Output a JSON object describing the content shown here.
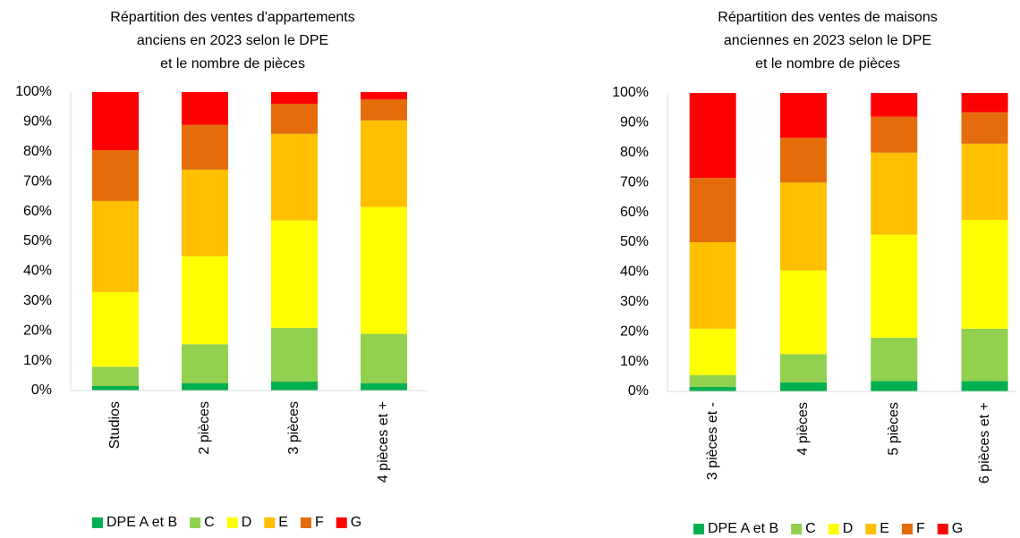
{
  "chart_data": [
    {
      "type": "bar",
      "stacked": true,
      "title": [
        "Répartition des ventes d'appartements",
        "anciens en 2023 selon le DPE",
        "et le nombre de pièces"
      ],
      "categories": [
        "Studios",
        "2 pièces",
        "3 pièces",
        "4 pièces et +"
      ],
      "series": [
        {
          "name": "DPE A et B",
          "color": "#00b050",
          "values": [
            1.5,
            2.5,
            3,
            2.5
          ]
        },
        {
          "name": "C",
          "color": "#92d050",
          "values": [
            6.5,
            13,
            18,
            16.5
          ]
        },
        {
          "name": "D",
          "color": "#ffff00",
          "values": [
            25,
            29.5,
            36,
            42.5
          ]
        },
        {
          "name": "E",
          "color": "#ffc000",
          "values": [
            30.5,
            29,
            29,
            29
          ]
        },
        {
          "name": "F",
          "color": "#e46c0a",
          "values": [
            17,
            15,
            10,
            7
          ]
        },
        {
          "name": "G",
          "color": "#ff0000",
          "values": [
            19.5,
            11,
            4,
            2.5
          ]
        }
      ],
      "ylim": [
        0,
        100
      ],
      "yticks": [
        {
          "value": 0,
          "label": "0%"
        },
        {
          "value": 10,
          "label": "10%"
        },
        {
          "value": 20,
          "label": "20%"
        },
        {
          "value": 30,
          "label": "30%"
        },
        {
          "value": 40,
          "label": "40%"
        },
        {
          "value": 50,
          "label": "50%"
        },
        {
          "value": 60,
          "label": "60%"
        },
        {
          "value": 70,
          "label": "70%"
        },
        {
          "value": 80,
          "label": "80%"
        },
        {
          "value": 90,
          "label": "90%"
        },
        {
          "value": 100,
          "label": "100%"
        }
      ],
      "legend": "bottom"
    },
    {
      "type": "bar",
      "stacked": true,
      "title": [
        "Répartition des ventes de maisons",
        "anciennes en 2023 selon le DPE",
        "et le nombre de pièces"
      ],
      "categories": [
        "3 pièces et -",
        "4 pièces",
        "5 pièces",
        "6 pièces et +"
      ],
      "series": [
        {
          "name": "DPE A et B",
          "color": "#00b050",
          "values": [
            1.5,
            3,
            3.5,
            3.5
          ]
        },
        {
          "name": "C",
          "color": "#92d050",
          "values": [
            4,
            9.5,
            14.5,
            17.5
          ]
        },
        {
          "name": "D",
          "color": "#ffff00",
          "values": [
            15.5,
            28,
            34.5,
            36.5
          ]
        },
        {
          "name": "E",
          "color": "#ffc000",
          "values": [
            29,
            29.5,
            27.5,
            25.5
          ]
        },
        {
          "name": "F",
          "color": "#e46c0a",
          "values": [
            21.5,
            15,
            12,
            10.5
          ]
        },
        {
          "name": "G",
          "color": "#ff0000",
          "values": [
            28.5,
            15,
            8,
            6.5
          ]
        }
      ],
      "ylim": [
        0,
        100
      ],
      "yticks": [
        {
          "value": 0,
          "label": "0%"
        },
        {
          "value": 10,
          "label": "10%"
        },
        {
          "value": 20,
          "label": "20%"
        },
        {
          "value": 30,
          "label": "30%"
        },
        {
          "value": 40,
          "label": "40%"
        },
        {
          "value": 50,
          "label": "50%"
        },
        {
          "value": 60,
          "label": "60%"
        },
        {
          "value": 70,
          "label": "70%"
        },
        {
          "value": 80,
          "label": "80%"
        },
        {
          "value": 90,
          "label": "90%"
        },
        {
          "value": 100,
          "label": "100%"
        }
      ],
      "legend": "bottom"
    }
  ]
}
